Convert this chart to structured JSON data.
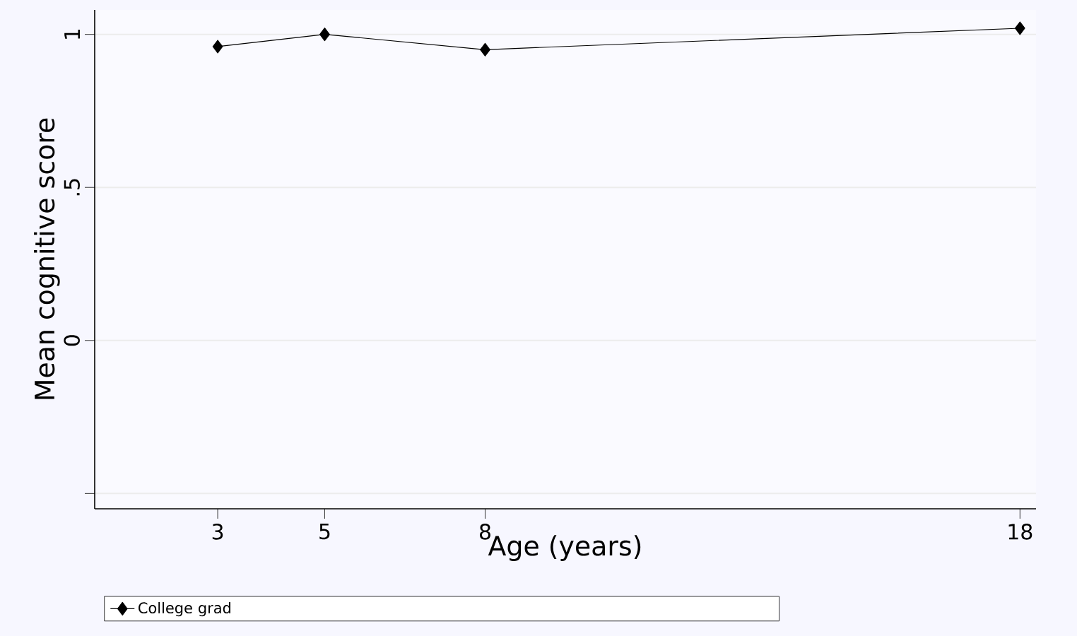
{
  "chart_data": {
    "type": "line",
    "xlabel": "Age (years)",
    "ylabel": "Mean cognitive score",
    "x": [
      3,
      5,
      8,
      18
    ],
    "series": [
      {
        "name": "College grad",
        "color": "#000000",
        "values": [
          0.96,
          1.0,
          0.95,
          1.02
        ]
      }
    ],
    "xlim": [
      0.7,
      18.3
    ],
    "xticks": [
      3,
      5,
      8,
      18
    ],
    "ylim": [
      -0.55,
      1.08
    ],
    "yticks": [
      {
        "value": -0.5,
        "label": null
      },
      0,
      {
        "value": 0.5,
        "label": ".5"
      },
      1
    ],
    "grid": "y",
    "legend": "bottom",
    "marker": "diamond",
    "line_style": "solid"
  }
}
